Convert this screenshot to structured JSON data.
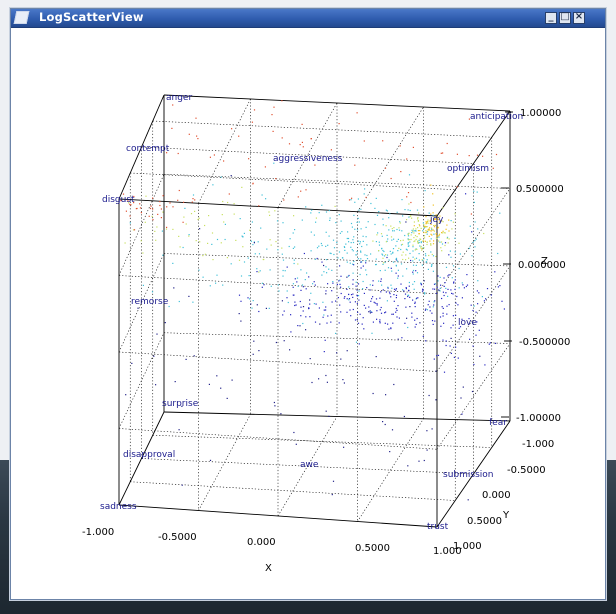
{
  "window": {
    "title": "LogScatterView"
  },
  "chart_data": {
    "type": "scatter",
    "xlabel": "X",
    "ylabel": "Y",
    "zlabel": "Z",
    "xlim": [
      -1.0,
      1.0
    ],
    "ylim": [
      -1.0,
      1.0
    ],
    "zlim": [
      -1.0,
      1.0
    ],
    "x_ticks": [
      "-1.000",
      "-0.5000",
      "0.000",
      "0.5000",
      "1.000"
    ],
    "y_ticks": [
      "-1.000",
      "-0.5000",
      "0.000",
      "0.5000",
      "1.000"
    ],
    "z_ticks": [
      "1.00000",
      "0.500000",
      "0.000000",
      "-0.500000",
      "-1.00000"
    ],
    "grid": true,
    "emotion_labels": [
      "anger",
      "anticipation",
      "contempt",
      "aggressiveness",
      "optimism",
      "disgust",
      "joy",
      "remorse",
      "love",
      "surprise",
      "fear",
      "disapproval",
      "awe",
      "submission",
      "sadness",
      "trust"
    ],
    "colors": {
      "dense": "#f0c020",
      "high": "#c8e060",
      "mid": "#40c0d8",
      "low": "#2828c0",
      "sparse": "#222288",
      "edge": "#e05030"
    }
  }
}
